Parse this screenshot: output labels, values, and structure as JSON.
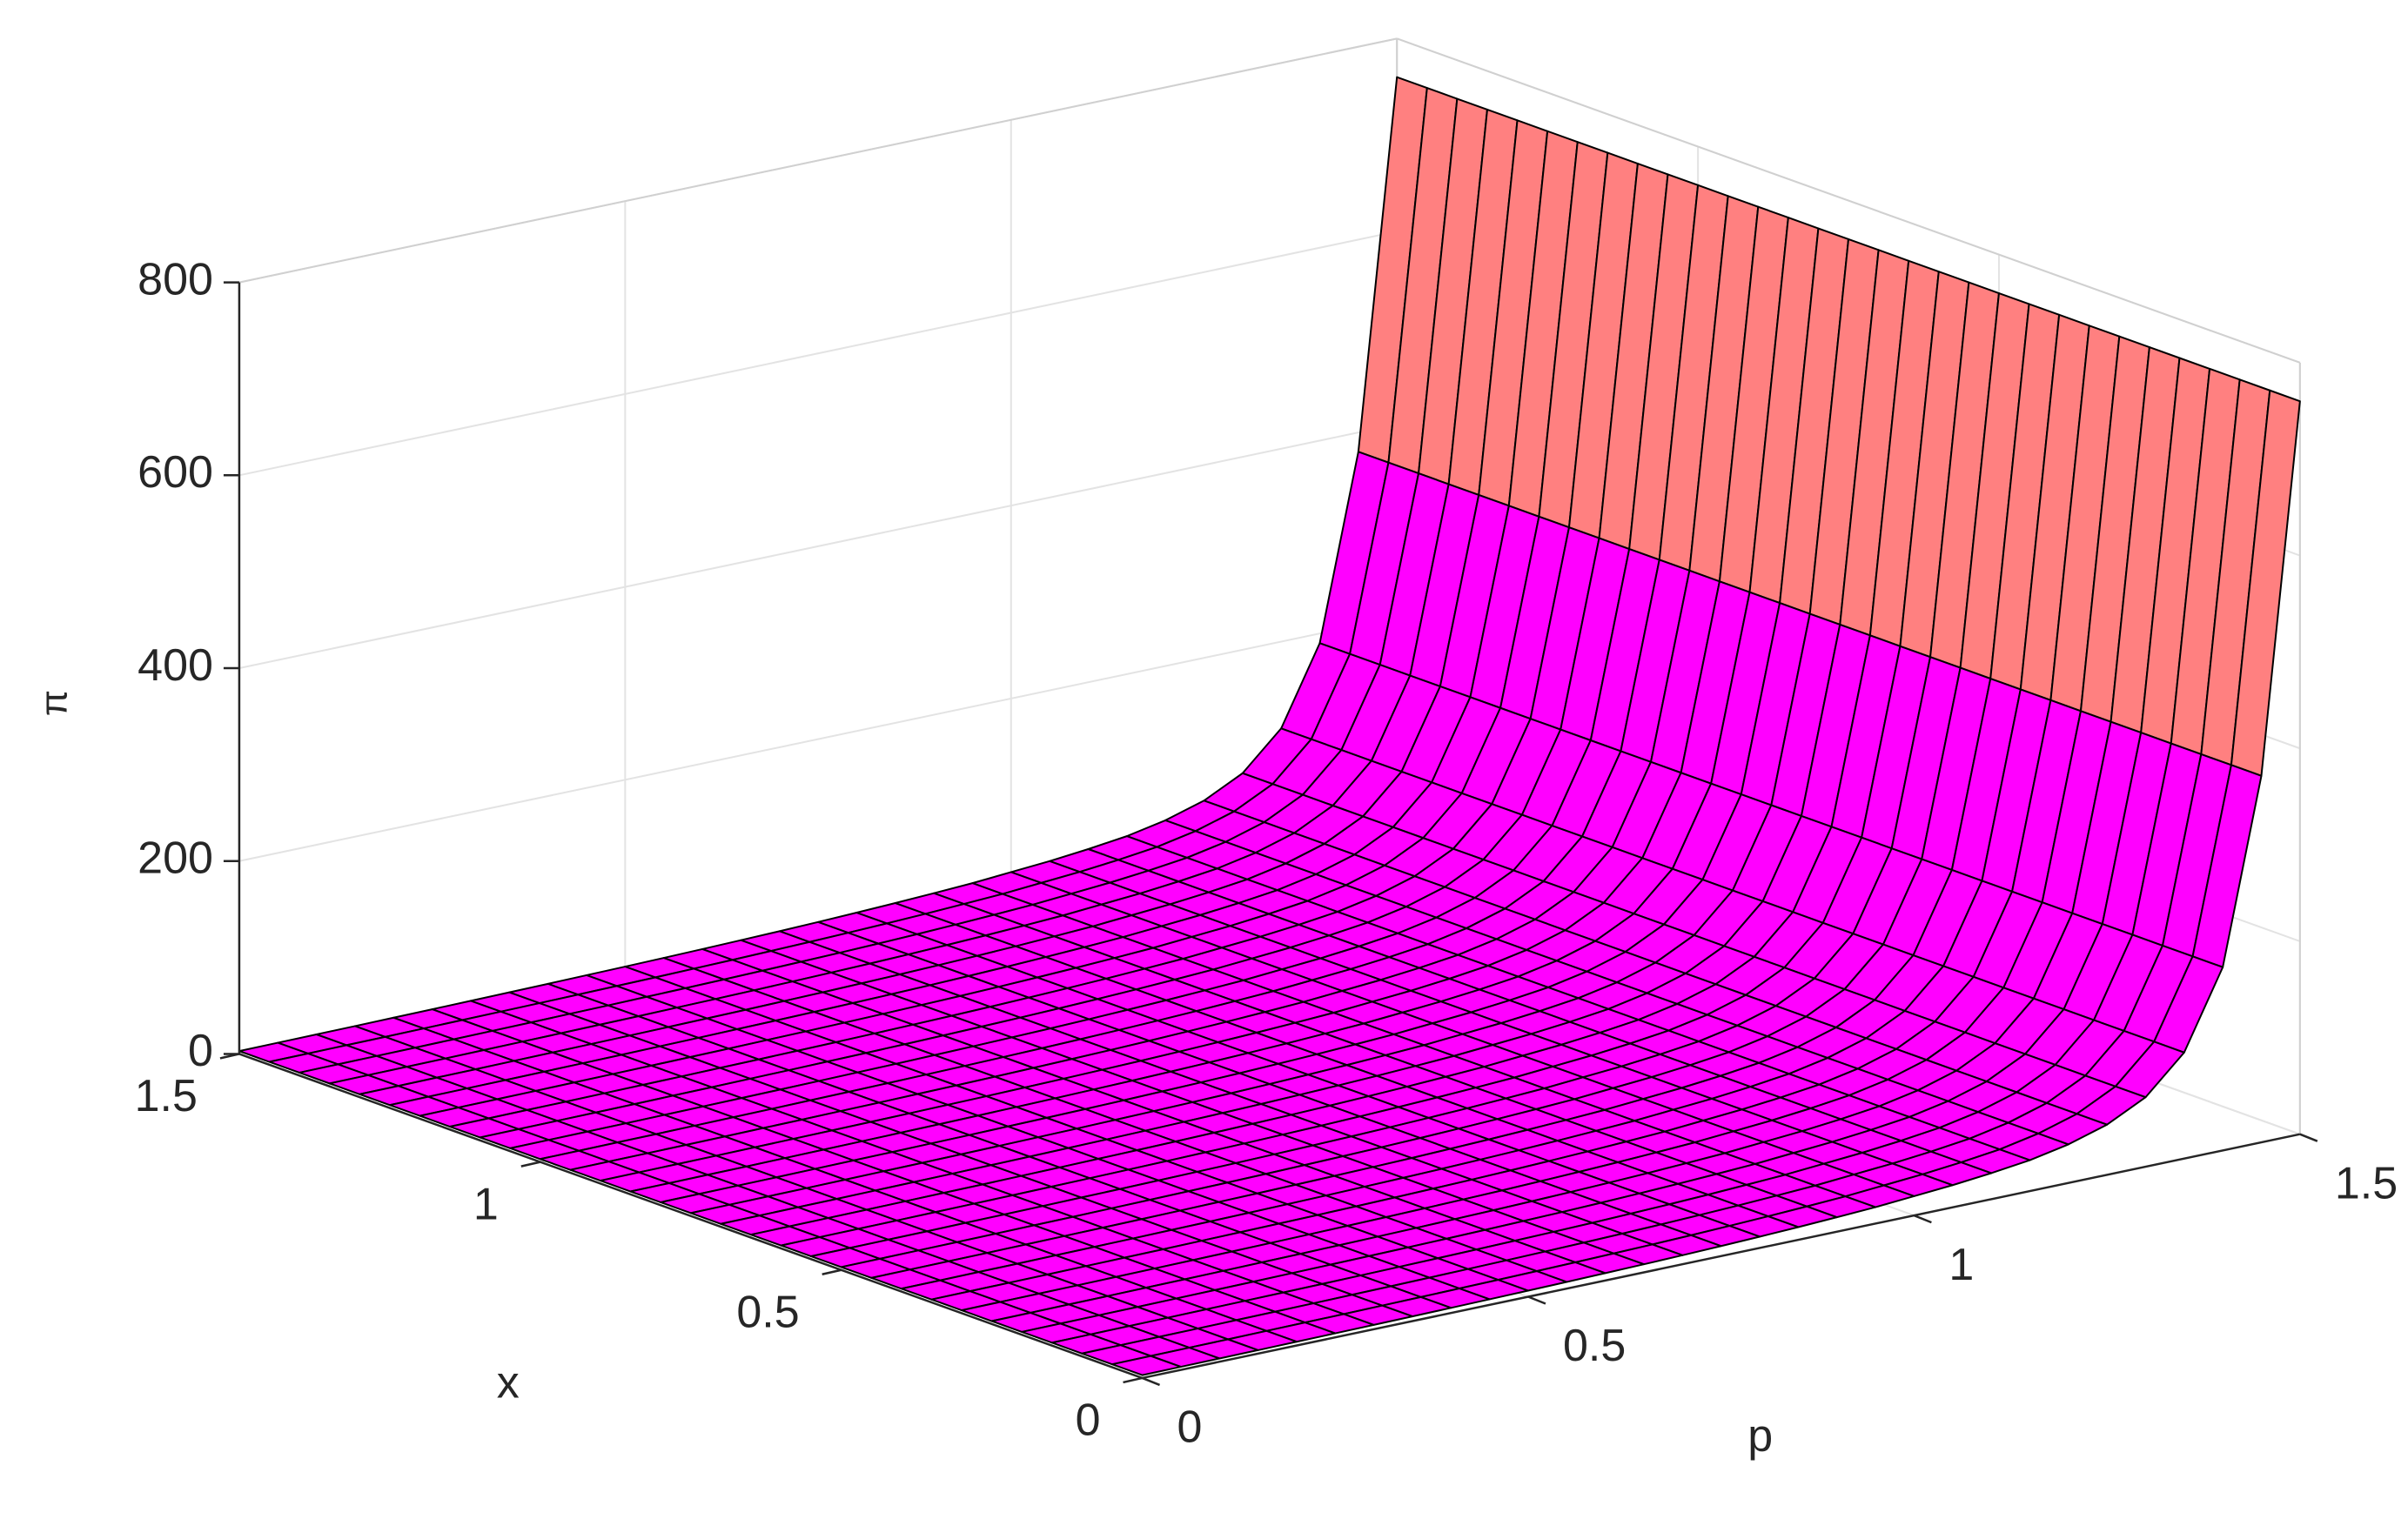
{
  "chart_data": {
    "type": "surface",
    "xlabel": "x",
    "ylabel": "p",
    "zlabel": "π",
    "x": [
      0,
      0.05,
      0.1,
      0.15,
      0.2,
      0.25,
      0.3,
      0.35,
      0.4,
      0.45,
      0.5,
      0.55,
      0.6,
      0.65,
      0.7,
      0.75,
      0.8,
      0.85,
      0.9,
      0.95,
      1,
      1.05,
      1.1,
      1.15,
      1.2,
      1.25,
      1.3,
      1.35,
      1.4,
      1.45,
      1.5
    ],
    "y": [
      0,
      0.05,
      0.1,
      0.15,
      0.2,
      0.25,
      0.3,
      0.35,
      0.4,
      0.45,
      0.5,
      0.55,
      0.6,
      0.65,
      0.7,
      0.75,
      0.8,
      0.85,
      0.9,
      0.95,
      1,
      1.05,
      1.1,
      1.15,
      1.2,
      1.25,
      1.3,
      1.35,
      1.4,
      1.45,
      1.5
    ],
    "values": [
      3,
      3.2,
      3.4,
      3.6,
      3.9,
      4.2,
      4.5,
      4.9,
      5.3,
      5.8,
      6.3,
      6.9,
      7.6,
      8.4,
      9.3,
      10.4,
      11.7,
      13.2,
      15,
      17,
      20,
      23,
      27,
      32,
      40,
      52,
      72,
      110,
      190,
      380,
      760
    ],
    "colormap": [
      "#ff00ff",
      "#ff8080"
    ],
    "edge_color": "#000000",
    "xlim": [
      0,
      1.5
    ],
    "xticks": [
      0,
      0.5,
      1,
      1.5
    ],
    "ylim": [
      0,
      1.5
    ],
    "yticks": [
      0,
      0.5,
      1,
      1.5
    ],
    "zlim": [
      0,
      800
    ],
    "zticks": [
      0,
      200,
      400,
      600,
      800
    ],
    "grid": true
  }
}
